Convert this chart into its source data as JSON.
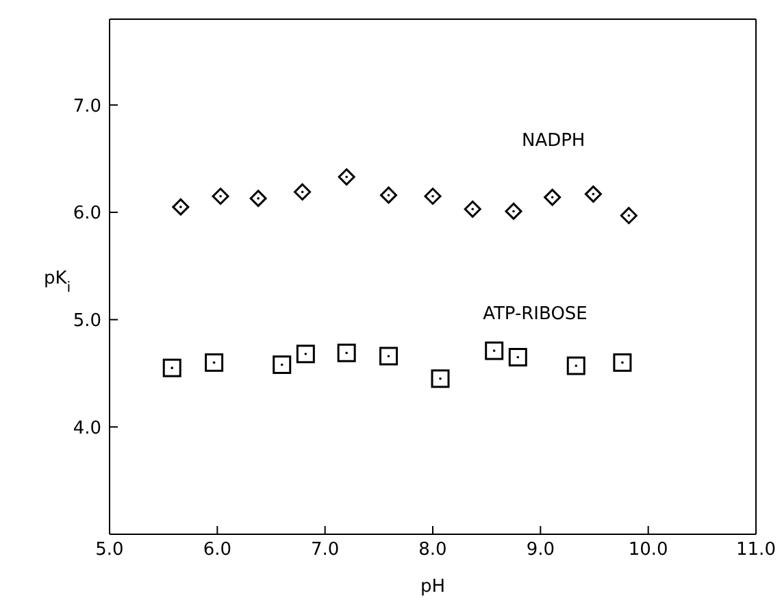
{
  "chart_data": {
    "type": "scatter",
    "xlabel": "pH",
    "ylabel": "pK$_{i}$",
    "xlim": [
      5.0,
      11.0
    ],
    "xticks": [
      {
        "value": 5,
        "label": "5.0"
      },
      {
        "value": 6,
        "label": "6.0"
      },
      {
        "value": 7,
        "label": "7.0"
      },
      {
        "value": 8,
        "label": "8.0"
      },
      {
        "value": 9,
        "label": "9.0"
      },
      {
        "value": 10,
        "label": "10.0"
      },
      {
        "value": 11,
        "label": "11.0"
      }
    ],
    "ylim": [
      3.0,
      7.8
    ],
    "yticks": [
      {
        "value": 4,
        "label": "4.0"
      },
      {
        "value": 5,
        "label": "5.0"
      },
      {
        "value": 6,
        "label": "6.0"
      },
      {
        "value": 7,
        "label": "7.0"
      }
    ],
    "grid": false,
    "legend": false,
    "series": [
      {
        "name": "NADPH",
        "color": "#000000",
        "marker": "diamond",
        "x": [
          5.66,
          6.03,
          6.38,
          6.79,
          7.2,
          7.59,
          8.0,
          8.37,
          8.75,
          9.11,
          9.49,
          9.82
        ],
        "values": [
          6.05,
          6.15,
          6.13,
          6.19,
          6.33,
          6.16,
          6.15,
          6.03,
          6.01,
          6.14,
          6.17,
          5.97
        ]
      },
      {
        "name": "ATP-RIBOSE",
        "color": "#000000",
        "marker": "square",
        "x": [
          5.58,
          5.97,
          6.6,
          6.82,
          7.2,
          7.59,
          8.07,
          8.57,
          8.79,
          9.33,
          9.76
        ],
        "values": [
          4.55,
          4.6,
          4.58,
          4.68,
          4.69,
          4.66,
          4.45,
          4.71,
          4.65,
          4.57,
          4.6
        ]
      }
    ]
  }
}
